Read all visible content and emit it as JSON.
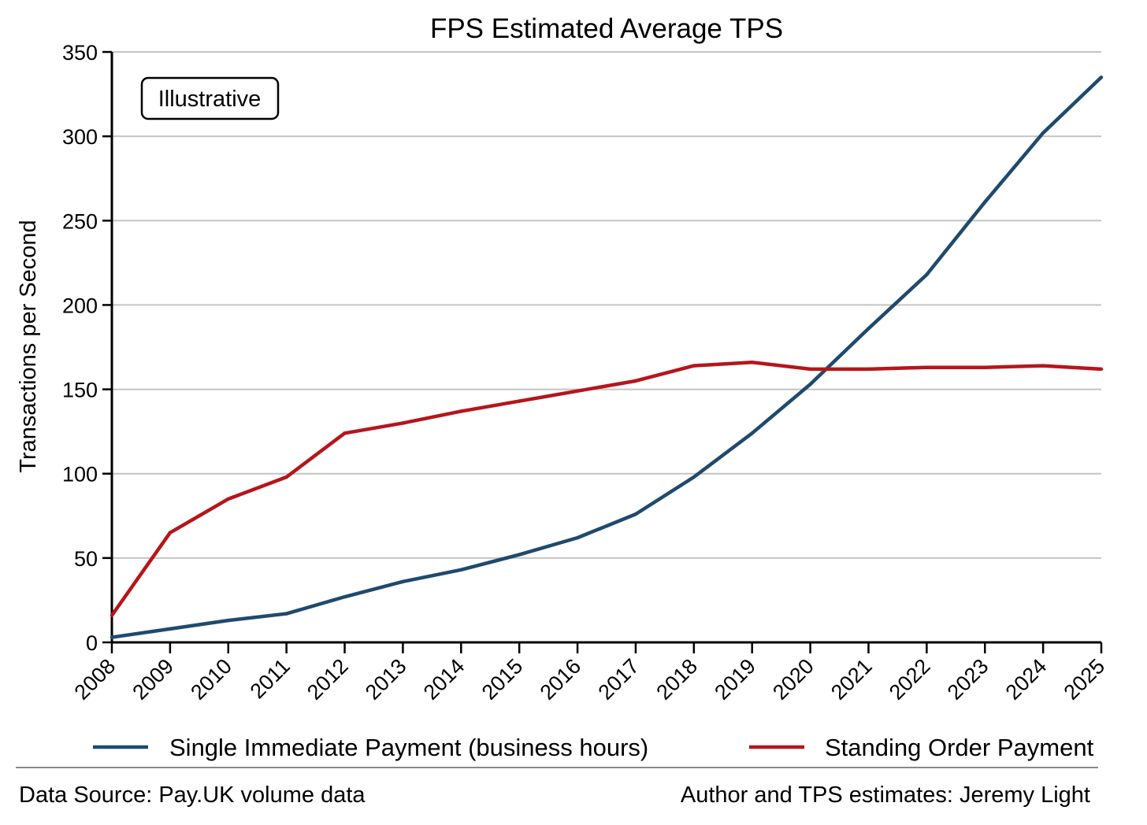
{
  "chart_data": {
    "type": "line",
    "title": "FPS Estimated Average TPS",
    "xlabel": "",
    "ylabel": "Transactions per Second",
    "categories": [
      "2008",
      "2009",
      "2010",
      "2011",
      "2012",
      "2013",
      "2014",
      "2015",
      "2016",
      "2017",
      "2018",
      "2019",
      "2020",
      "2021",
      "2022",
      "2023",
      "2024",
      "2025"
    ],
    "ylim": [
      0,
      350
    ],
    "yticks": [
      0,
      50,
      100,
      150,
      200,
      250,
      300,
      350
    ],
    "grid": "horizontal",
    "annotation": "Illustrative",
    "legend_position": "bottom",
    "series": [
      {
        "name": "Single Immediate Payment (business hours)",
        "color": "#1f4a6e",
        "values": [
          3,
          8,
          13,
          17,
          27,
          36,
          43,
          52,
          62,
          76,
          98,
          124,
          153,
          186,
          218,
          261,
          302,
          335
        ]
      },
      {
        "name": "Standing Order Payment",
        "color": "#b5161b",
        "values": [
          16,
          65,
          85,
          98,
          124,
          130,
          137,
          143,
          149,
          155,
          164,
          166,
          162,
          162,
          163,
          163,
          164,
          162
        ]
      }
    ]
  },
  "footer": {
    "source": "Data Source: Pay.UK volume data",
    "author": "Author and TPS estimates: Jeremy Light"
  }
}
